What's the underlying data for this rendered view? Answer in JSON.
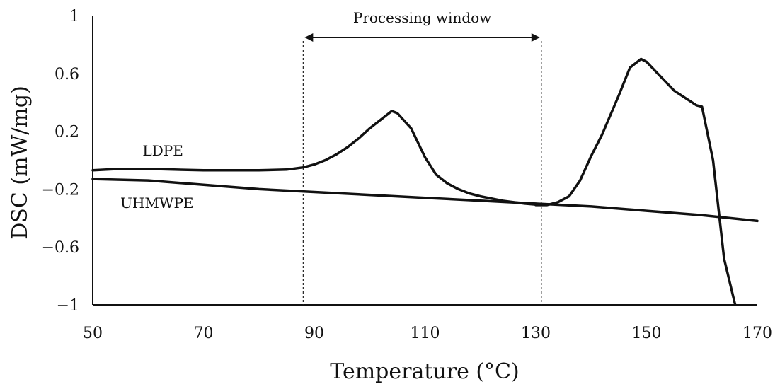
{
  "chart_data": {
    "type": "line",
    "title": "",
    "xlabel": "Temperature (°C)",
    "ylabel": "DSC (mW/mg)",
    "xlim": [
      50,
      170
    ],
    "ylim": [
      -1,
      1
    ],
    "xticks": [
      50,
      70,
      90,
      110,
      130,
      150,
      170
    ],
    "yticks": [
      1,
      0.6,
      0.2,
      -0.2,
      -0.6,
      -1
    ],
    "ytick_labels": [
      "1",
      "0.6",
      "0.2",
      "−0.2",
      "−0.6",
      "−1"
    ],
    "grid": false,
    "series": [
      {
        "name": "LDPE",
        "x": [
          50,
          55,
          60,
          70,
          80,
          85,
          88,
          90,
          92,
          94,
          96,
          98,
          100,
          102,
          104,
          105,
          107.5,
          110,
          112,
          114,
          116,
          118,
          120,
          124,
          128,
          131
        ],
        "y": [
          -0.07,
          -0.06,
          -0.06,
          -0.07,
          -0.07,
          -0.065,
          -0.05,
          -0.03,
          0.0,
          0.04,
          0.09,
          0.15,
          0.22,
          0.28,
          0.34,
          0.325,
          0.22,
          0.02,
          -0.1,
          -0.16,
          -0.2,
          -0.23,
          -0.25,
          -0.28,
          -0.3,
          -0.31
        ]
      },
      {
        "name": "UHMWPE",
        "x": [
          50,
          60,
          70,
          80,
          90,
          100,
          110,
          120,
          130,
          140,
          150,
          160,
          170
        ],
        "y": [
          -0.13,
          -0.14,
          -0.17,
          -0.2,
          -0.22,
          -0.24,
          -0.26,
          -0.28,
          -0.3,
          -0.32,
          -0.35,
          -0.38,
          -0.42
        ]
      },
      {
        "name": "UHMWPE-melting",
        "x": [
          130,
          132,
          134,
          136,
          138,
          140,
          142,
          145,
          147,
          149,
          150,
          152,
          155,
          159,
          160,
          162,
          164,
          166
        ],
        "y": [
          -0.31,
          -0.31,
          -0.29,
          -0.25,
          -0.14,
          0.03,
          0.18,
          0.45,
          0.64,
          0.7,
          0.68,
          0.6,
          0.48,
          0.38,
          0.37,
          0.0,
          -0.68,
          -1.0
        ]
      }
    ],
    "annotations": {
      "processing_window": {
        "label": "Processing window",
        "x_start": 88,
        "x_end": 131
      },
      "ldpe_label": {
        "text": "LDPE",
        "x": 59,
        "y": 0.07
      },
      "uhmwpe_label": {
        "text": "UHMWPE",
        "x": 55,
        "y": -0.29
      }
    }
  }
}
